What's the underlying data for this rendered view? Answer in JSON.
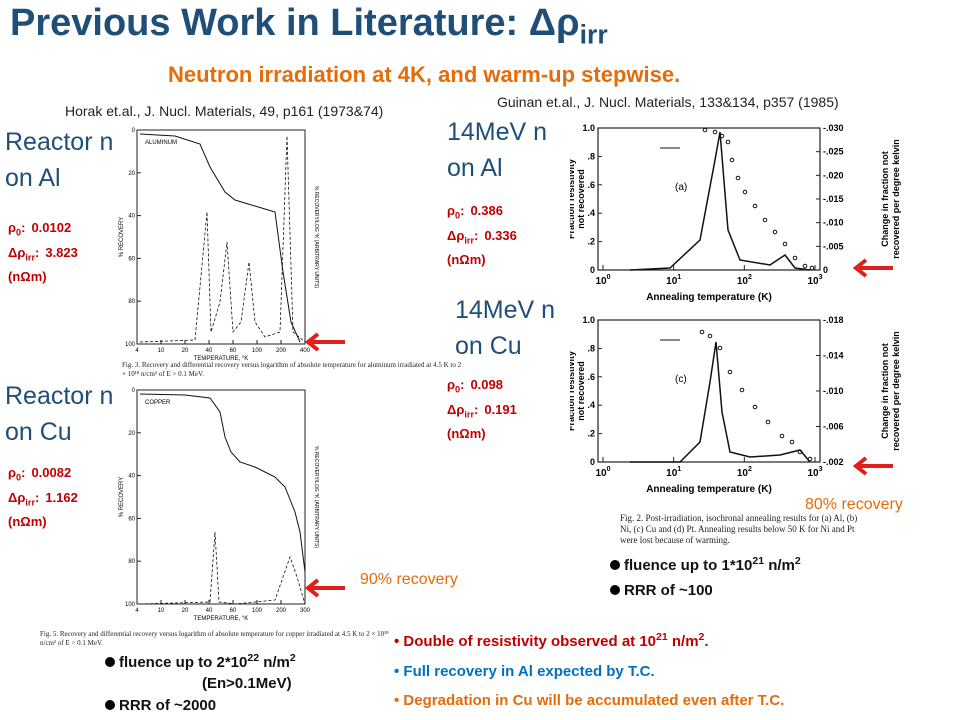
{
  "title": {
    "text": "Previous Work in Literature: ",
    "symbol": "Δρ",
    "sub": "irr"
  },
  "subtitle": "Neutron irradiation at 4K, and warm-up stepwise.",
  "references": {
    "left": "Horak et.al., J. Nucl. Materials, 49, p161 (1973&74)",
    "right": "Guinan et.al., J. Nucl. Materials, 133&134, p357 (1985)"
  },
  "samples": [
    {
      "lines": [
        "Reactor n",
        "on Al"
      ],
      "rho0": {
        "sym": "ρ",
        "sub": "0",
        "sep": ":",
        "value": "0.0102"
      },
      "drho": {
        "sym": "Δρ",
        "sub": "irr",
        "sep": ":",
        "value": "3.823"
      },
      "unit": "(nΩm)"
    },
    {
      "lines": [
        "Reactor n",
        "on Cu"
      ],
      "rho0": {
        "sym": "ρ",
        "sub": "0",
        "sep": ":",
        "value": "0.0082"
      },
      "drho": {
        "sym": "Δρ",
        "sub": "irr",
        "sep": ":",
        "value": "1.162"
      },
      "unit": "(nΩm)"
    },
    {
      "lines": [
        "14MeV n",
        "on Al"
      ],
      "rho0": {
        "sym": "ρ",
        "sub": "0",
        "sep": ":",
        "value": "0.386"
      },
      "drho": {
        "sym": "Δρ",
        "sub": "irr",
        "sep": ":",
        "value": "0.336"
      },
      "unit": "(nΩm)"
    },
    {
      "lines": [
        "14MeV n",
        "on Cu"
      ],
      "rho0": {
        "sym": "ρ",
        "sub": "0",
        "sep": ":",
        "value": "0.098"
      },
      "drho": {
        "sym": "Δρ",
        "sub": "irr",
        "sep": ":",
        "value": "0.191"
      },
      "unit": "(nΩm)"
    }
  ],
  "figures": {
    "horak": [
      {
        "label": "ALUMINUM",
        "x_label": "TEMPERATURE, °K",
        "y_left": "% RECOVERY",
        "y_right": "% RECOVERY/LOG °K (ARBITRARY UNITS)",
        "xticks": [
          "4",
          "10",
          "20",
          "40",
          "60",
          "100",
          "200",
          "400"
        ],
        "yticks": [
          "0",
          "20",
          "40",
          "60",
          "80",
          "100"
        ],
        "caption": "Fig. 3. Recovery and differential recovery versus logarithm of absolute temperature for aluminum irradiated at 4.5 K to 2 × 10¹⁸ n/cm² of E > 0.1 MeV."
      },
      {
        "label": "COPPER",
        "x_label": "TEMPERATURE, °K",
        "y_left": "% RECOVERY",
        "y_right": "% RECOVERY/LOG °K (ARBITRARY UNITS)",
        "xticks": [
          "4",
          "10",
          "20",
          "40",
          "60",
          "100",
          "200",
          "300"
        ],
        "yticks": [
          "0",
          "20",
          "40",
          "60",
          "80",
          "100"
        ],
        "caption": "Fig. 5. Recovery and differential recovery versus logarithm of absolute temperature for copper irradiated at 4.5 K to 2 × 10¹⁸ n/cm² of E > 0.1 MeV."
      }
    ],
    "guinan": [
      {
        "panel": "(a)",
        "x_label": "Annealing temperature (K)",
        "y_left": [
          "Fraction resistivity",
          "not recovered"
        ],
        "y_right": [
          "Change in fraction not",
          "recovered per degree kelvin"
        ],
        "xticks": [
          {
            "base": "10",
            "exp": "0"
          },
          {
            "base": "10",
            "exp": "1"
          },
          {
            "base": "10",
            "exp": "2"
          },
          {
            "base": "10",
            "exp": "3"
          }
        ],
        "yticks": [
          "1.0",
          ".8",
          ".6",
          ".4",
          ".2",
          "0"
        ],
        "y2ticks": [
          "-.030",
          "-.025",
          "-.020",
          "-.015",
          "-.010",
          "-.005",
          "0"
        ]
      },
      {
        "panel": "(c)",
        "x_label": "Annealing temperature (K)",
        "y_left": [
          "Fraction resistivity",
          "not recovered"
        ],
        "y_right": [
          "Change in fraction not",
          "recovered per degree kelvin"
        ],
        "xticks": [
          {
            "base": "10",
            "exp": "0"
          },
          {
            "base": "10",
            "exp": "1"
          },
          {
            "base": "10",
            "exp": "2"
          },
          {
            "base": "10",
            "exp": "3"
          }
        ],
        "yticks": [
          "1.0",
          ".8",
          ".6",
          ".4",
          ".2",
          "0"
        ],
        "y2ticks": [
          "-.018",
          "-.014",
          "-.010",
          "-.006",
          "-.002"
        ]
      }
    ],
    "guinan_caption": "Fig. 2. Post-irradiation, isochronal annealing results for (a) Al, (b) Ni, (c) Cu and (d) Pt. Annealing results below 50 K for Ni and Pt were lost because of warming."
  },
  "recovery_notes": {
    "left": "90% recovery",
    "right": "80% recovery"
  },
  "bullets_left": [
    {
      "text": "fluence up to 2*10",
      "exp": "22",
      "unit": " n/m",
      "unit_exp": "2"
    },
    {
      "text": "(En>0.1MeV)"
    },
    {
      "text": "RRR of ~2000"
    }
  ],
  "bullets_right": [
    {
      "text": "fluence up to 1*10",
      "exp": "21",
      "unit": " n/m",
      "unit_exp": "2"
    },
    {
      "text": "RRR of ~100"
    }
  ],
  "conclusions": [
    {
      "text": "Double of resistivity observed at 10",
      "exp": "21",
      "unit": " n/m",
      "unit_exp": "2",
      "end": "."
    },
    {
      "text": "Full recovery in Al expected by T.C."
    },
    {
      "text": "Degradation in Cu will be accumulated even after T.C."
    }
  ]
}
